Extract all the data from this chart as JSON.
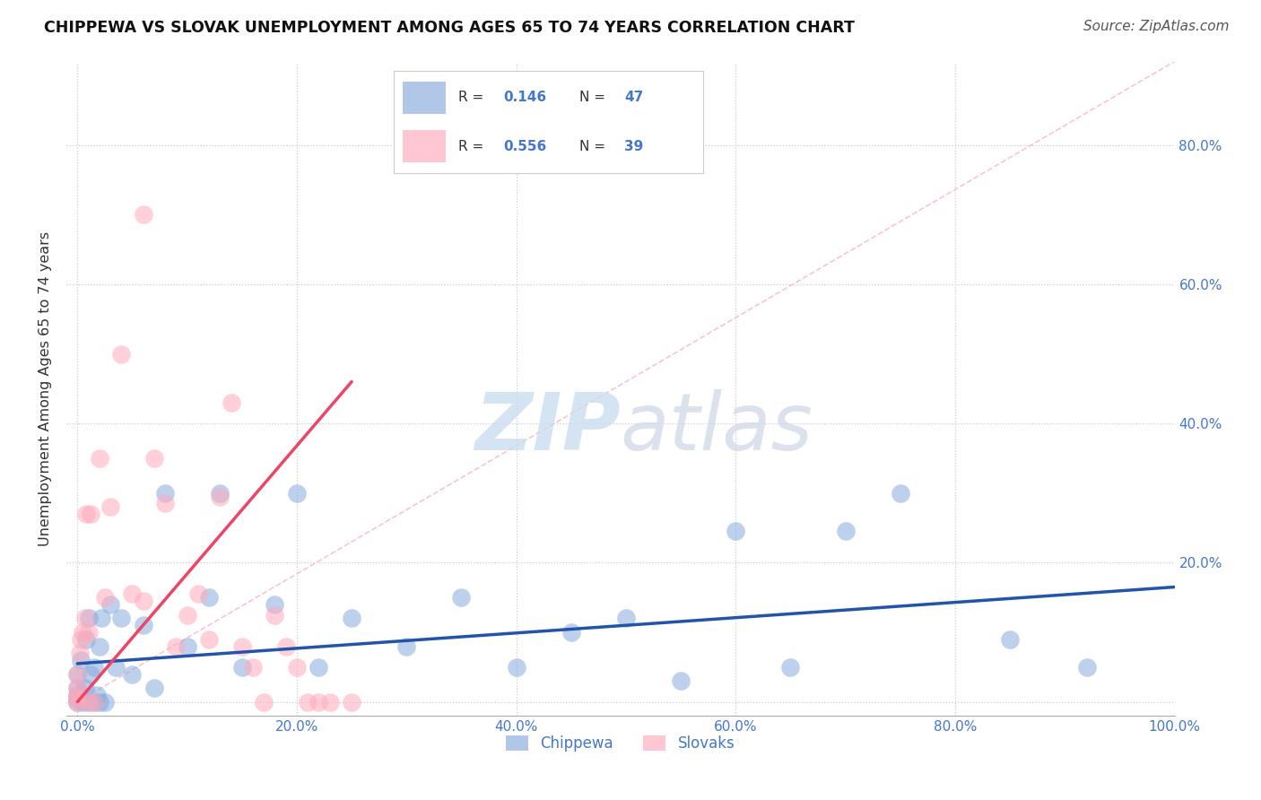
{
  "title": "CHIPPEWA VS SLOVAK UNEMPLOYMENT AMONG AGES 65 TO 74 YEARS CORRELATION CHART",
  "source": "Source: ZipAtlas.com",
  "ylabel": "Unemployment Among Ages 65 to 74 years",
  "chippewa_color": "#88AADD",
  "slovak_color": "#FFAABB",
  "chippewa_R": 0.146,
  "chippewa_N": 47,
  "slovak_R": 0.556,
  "slovak_N": 39,
  "chippewa_line_color": "#2255AA",
  "slovak_line_color": "#EE4466",
  "diagonal_color": "#FFBBCC",
  "watermark_color": "#D8E8F8",
  "background_color": "#FFFFFF",
  "grid_color": "#CCCCCC",
  "legend_text_color": "#4477CC",
  "title_color": "#111111",
  "source_color": "#555555",
  "ylabel_color": "#333333",
  "chippewa_x": [
    0.0,
    0.0,
    0.0,
    0.0,
    0.0,
    0.002,
    0.003,
    0.005,
    0.007,
    0.008,
    0.01,
    0.01,
    0.012,
    0.015,
    0.015,
    0.018,
    0.02,
    0.02,
    0.022,
    0.025,
    0.03,
    0.035,
    0.04,
    0.05,
    0.06,
    0.07,
    0.08,
    0.1,
    0.12,
    0.13,
    0.15,
    0.18,
    0.2,
    0.22,
    0.25,
    0.3,
    0.35,
    0.4,
    0.45,
    0.5,
    0.55,
    0.6,
    0.65,
    0.7,
    0.75,
    0.85,
    0.92
  ],
  "chippewa_y": [
    0.0,
    0.005,
    0.01,
    0.02,
    0.04,
    0.01,
    0.06,
    0.0,
    0.02,
    0.09,
    0.0,
    0.12,
    0.04,
    0.0,
    0.05,
    0.01,
    0.0,
    0.08,
    0.12,
    0.0,
    0.14,
    0.05,
    0.12,
    0.04,
    0.11,
    0.02,
    0.3,
    0.08,
    0.15,
    0.3,
    0.05,
    0.14,
    0.3,
    0.05,
    0.12,
    0.08,
    0.15,
    0.05,
    0.1,
    0.12,
    0.03,
    0.245,
    0.05,
    0.245,
    0.3,
    0.09,
    0.05
  ],
  "slovak_x": [
    0.0,
    0.0,
    0.0,
    0.0,
    0.0,
    0.002,
    0.003,
    0.005,
    0.007,
    0.008,
    0.01,
    0.01,
    0.012,
    0.015,
    0.02,
    0.025,
    0.03,
    0.04,
    0.05,
    0.06,
    0.06,
    0.07,
    0.08,
    0.09,
    0.1,
    0.11,
    0.12,
    0.13,
    0.14,
    0.15,
    0.16,
    0.17,
    0.18,
    0.19,
    0.2,
    0.21,
    0.22,
    0.23,
    0.25
  ],
  "slovak_y": [
    0.0,
    0.005,
    0.01,
    0.02,
    0.04,
    0.07,
    0.09,
    0.1,
    0.12,
    0.27,
    0.0,
    0.1,
    0.27,
    0.0,
    0.35,
    0.15,
    0.28,
    0.5,
    0.155,
    0.7,
    0.145,
    0.35,
    0.285,
    0.08,
    0.125,
    0.155,
    0.09,
    0.295,
    0.43,
    0.08,
    0.05,
    0.0,
    0.125,
    0.08,
    0.05,
    0.0,
    0.0,
    0.0,
    0.0
  ],
  "xlim": [
    -0.01,
    1.0
  ],
  "ylim": [
    -0.02,
    0.92
  ],
  "xtick_vals": [
    0.0,
    0.2,
    0.4,
    0.6,
    0.8,
    1.0
  ],
  "xtick_labels": [
    "0.0%",
    "20.0%",
    "40.0%",
    "60.0%",
    "80.0%",
    "100.0%"
  ],
  "ytick_vals_right": [
    0.2,
    0.4,
    0.6,
    0.8
  ],
  "ytick_labels_right": [
    "20.0%",
    "40.0%",
    "60.0%",
    "80.0%"
  ],
  "chippewa_line_x": [
    0.0,
    1.0
  ],
  "chippewa_line_y": [
    0.055,
    0.165
  ],
  "slovak_line_x": [
    0.0,
    0.25
  ],
  "slovak_line_y": [
    0.0,
    0.46
  ]
}
